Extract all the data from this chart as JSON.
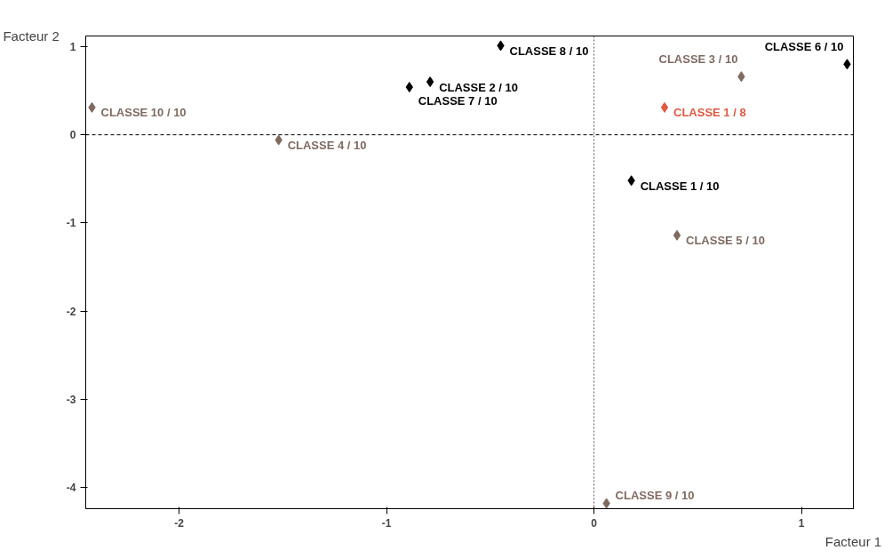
{
  "chart_data": {
    "type": "scatter",
    "xlabel": "Facteur 1",
    "ylabel": "Facteur 2",
    "xlim": [
      -2.45,
      1.25
    ],
    "ylim": [
      -4.24,
      1.12
    ],
    "xticks": [
      -2,
      -1,
      0,
      1
    ],
    "yticks": [
      1,
      0,
      -1,
      -2,
      -3,
      -4
    ],
    "grid": false,
    "marker": "diamond",
    "series": [
      {
        "x": [
          -0.45,
          -0.79,
          -0.89,
          -2.42,
          -1.52,
          1.22,
          0.71,
          0.34,
          0.18,
          0.4,
          0.06
        ],
        "values": [
          1.01,
          0.6,
          0.54,
          0.31,
          -0.06,
          0.8,
          0.66,
          0.31,
          -0.52,
          -1.14,
          -4.18
        ],
        "colors": [
          "#000000",
          "#000000",
          "#000000",
          "#7f6a60",
          "#7f6a60",
          "#000000",
          "#7f6a60",
          "#e05a40",
          "#000000",
          "#7f6a60",
          "#7f6a60"
        ],
        "value_labels": [
          "CLASSE 8 / 10",
          "CLASSE 2 / 10",
          "CLASSE 7 / 10",
          "CLASSE 10 / 10",
          "CLASSE 4 / 10",
          "CLASSE 6 / 10",
          "CLASSE 3 / 10",
          "CLASSE 1 / 8",
          "CLASSE 1 / 10",
          "CLASSE 5 / 10",
          "CLASSE 9 / 10"
        ]
      }
    ],
    "ref_lines": [
      {
        "axis": "x",
        "value": 0,
        "line_style": "dotted",
        "color": "#555555"
      },
      {
        "axis": "y",
        "value": 0,
        "line_style": "dashed",
        "color": "#000000"
      }
    ]
  }
}
